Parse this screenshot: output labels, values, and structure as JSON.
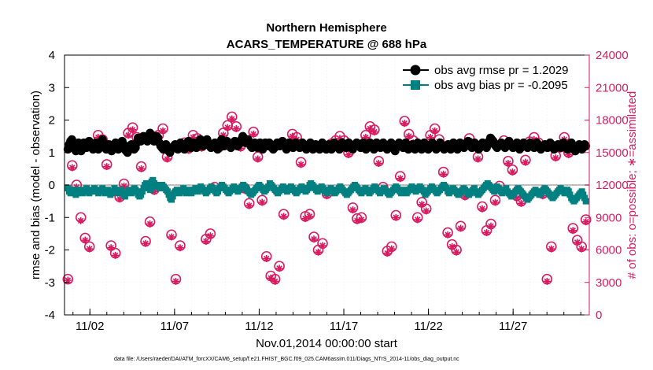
{
  "chart_data": {
    "type": "line",
    "title": "Northern Hemisphere",
    "subtitle": "ACARS_TEMPERATURE @ 688 hPa",
    "xlabel": "Nov.01,2014 00:00:00 start",
    "ylabel": "rmse and bias (model - observation)",
    "y2label": "# of obs: o=possible; ∗=assimilated",
    "ylim": [
      -4,
      4
    ],
    "y2lim": [
      0,
      24000
    ],
    "yticks": [
      "-4",
      "-3",
      "-2",
      "-1",
      "0",
      "1",
      "2",
      "3",
      "4"
    ],
    "y2ticks": [
      "0",
      "3000",
      "6000",
      "9000",
      "12000",
      "15000",
      "18000",
      "21000",
      "24000"
    ],
    "xtick_labels": [
      "11/02",
      "11/07",
      "11/12",
      "11/17",
      "11/22",
      "11/27"
    ],
    "xtick_days": [
      2,
      7,
      12,
      17,
      22,
      27
    ],
    "xlim_days": [
      0.5,
      31.5
    ],
    "legend_position": "top-right",
    "series": [
      {
        "name": "obs avg rmse pr = 1.2029",
        "color": "#000000",
        "axis": "left",
        "values": [
          1.1,
          1.25,
          1.35,
          1.4,
          1.3,
          1.15,
          1.05,
          1.2,
          1.3,
          1.15,
          1.05,
          1.2,
          1.3,
          1.25,
          1.15,
          1.2,
          1.35,
          1.3,
          1.2,
          1.1,
          1.2,
          1.3,
          1.2,
          1.1,
          1.15,
          1.3,
          1.4,
          1.3,
          1.2,
          1.1,
          1.2,
          1.25,
          1.15,
          1.05,
          1.1,
          1.25,
          1.3,
          1.2,
          1.1,
          1.15,
          1.3,
          1.35,
          1.25,
          1.1,
          1.05,
          1.0,
          1.1,
          1.2,
          1.25,
          1.2,
          1.1,
          1.15,
          1.3,
          1.45,
          1.4,
          1.35,
          1.4,
          1.5,
          1.45,
          1.4,
          1.35,
          1.45,
          1.6,
          1.55,
          1.4,
          1.35,
          1.4,
          1.5,
          1.45,
          1.3,
          1.2,
          1.15,
          1.1,
          1.2,
          1.25,
          1.15,
          1.05,
          1.0,
          1.1,
          1.15,
          1.2,
          1.25,
          1.2,
          1.1,
          1.2,
          1.3,
          1.25,
          1.15,
          1.1,
          1.2,
          1.3,
          1.35,
          1.25,
          1.15,
          1.2,
          1.3,
          1.25,
          1.15,
          1.2,
          1.3,
          1.4,
          1.3,
          1.2,
          1.25,
          1.35,
          1.4,
          1.3,
          1.2,
          1.15,
          1.2,
          1.25,
          1.3,
          1.2,
          1.1,
          1.15,
          1.3,
          1.4,
          1.3,
          1.2,
          1.25,
          1.35,
          1.3,
          1.2,
          1.15,
          1.2,
          1.3,
          1.35,
          1.25,
          1.2,
          1.25,
          1.3,
          1.4,
          1.5,
          1.4,
          1.3,
          1.35,
          1.4,
          1.3,
          1.2,
          1.15,
          1.2,
          1.3,
          1.25,
          1.15,
          1.2,
          1.3,
          1.2,
          1.1,
          1.2,
          1.3,
          1.25,
          1.2,
          1.3,
          1.25,
          1.15,
          1.1,
          1.15,
          1.2,
          1.3,
          1.25,
          1.2,
          1.3,
          1.35,
          1.3,
          1.2,
          1.1,
          1.2,
          1.3,
          1.25,
          1.2,
          1.15,
          1.2,
          1.3,
          1.25,
          1.2,
          1.15,
          1.2,
          1.3,
          1.25,
          1.2,
          1.1,
          1.15,
          1.2,
          1.3,
          1.2,
          1.1,
          1.2,
          1.25,
          1.2,
          1.15,
          1.1,
          1.2,
          1.3,
          1.25,
          1.2,
          1.1,
          1.2,
          1.25,
          1.15,
          1.1,
          1.2,
          1.3,
          1.25,
          1.2,
          1.15,
          1.1,
          1.2,
          1.3,
          1.25,
          1.2,
          1.15,
          1.25,
          1.3,
          1.25,
          1.15,
          1.1,
          1.2,
          1.25,
          1.3,
          1.25,
          1.2,
          1.15,
          1.25,
          1.3,
          1.2,
          1.1,
          1.15,
          1.2,
          1.3,
          1.25,
          1.15,
          1.1,
          1.2,
          1.3,
          1.25,
          1.2,
          1.15,
          1.2,
          1.3,
          1.25,
          1.2,
          1.1,
          1.15,
          1.25,
          1.3,
          1.2,
          1.15,
          1.05,
          1.15,
          1.25,
          1.3,
          1.25,
          1.2,
          1.15,
          1.25,
          1.3,
          1.2,
          1.1,
          1.15,
          1.2,
          1.25,
          1.2,
          1.1,
          1.2,
          1.3,
          1.25,
          1.15,
          1.1,
          1.2,
          1.3,
          1.25,
          1.2,
          1.1,
          1.2,
          1.25,
          1.3,
          1.25,
          1.2,
          1.1,
          1.15,
          1.25,
          1.3,
          1.25,
          1.2,
          1.1,
          1.15,
          1.2,
          1.25,
          1.2,
          1.1,
          1.2,
          1.3,
          1.25,
          1.15,
          1.1,
          1.2,
          1.3,
          1.25,
          1.2,
          1.15,
          1.2,
          1.3,
          1.35,
          1.25,
          1.2,
          1.15,
          1.25,
          1.3,
          1.25,
          1.2,
          1.1,
          1.15,
          1.25,
          1.3,
          1.25,
          1.2,
          1.15,
          1.25,
          1.35,
          1.45,
          1.4,
          1.35,
          1.25,
          1.2,
          1.15,
          1.2,
          1.25,
          1.3,
          1.25,
          1.2,
          1.15,
          1.25,
          1.3,
          1.35,
          1.25,
          1.2,
          1.15,
          1.2,
          1.25,
          1.3,
          1.2,
          1.1,
          1.15,
          1.25,
          1.3,
          1.25,
          1.2,
          1.15,
          1.2,
          1.3,
          1.25,
          1.2,
          1.15,
          1.25,
          1.3,
          1.25,
          1.2,
          1.1,
          1.15,
          1.2,
          1.25,
          1.2,
          1.15,
          1.25,
          1.3,
          1.25,
          1.2,
          1.1,
          1.15,
          1.2,
          1.25,
          1.2,
          1.15,
          1.25,
          1.3,
          1.25,
          1.2,
          1.1,
          1.15,
          1.25,
          1.3,
          1.2,
          1.1,
          1.05,
          1.15,
          1.2,
          1.25,
          1.2,
          1.1,
          1.15,
          1.25,
          1.2
        ]
      },
      {
        "name": "obs avg bias pr = -0.2095",
        "color": "#008080",
        "axis": "left",
        "values": [
          -0.1,
          -0.2,
          -0.25,
          -0.2,
          -0.15,
          -0.25,
          -0.3,
          -0.25,
          -0.2,
          -0.15,
          -0.2,
          -0.25,
          -0.2,
          -0.15,
          -0.1,
          -0.2,
          -0.25,
          -0.2,
          -0.15,
          -0.2,
          -0.1,
          -0.15,
          -0.2,
          -0.25,
          -0.2,
          -0.15,
          -0.1,
          -0.2,
          -0.25,
          -0.2,
          -0.15,
          -0.2,
          -0.3,
          -0.25,
          -0.2,
          -0.1,
          -0.15,
          -0.2,
          -0.25,
          -0.2,
          -0.15,
          -0.25,
          -0.3,
          -0.35,
          -0.25,
          -0.2,
          -0.15,
          -0.2,
          -0.25,
          -0.2,
          -0.1,
          -0.15,
          -0.2,
          -0.3,
          -0.35,
          -0.3,
          -0.2,
          -0.1,
          0.0,
          0.05,
          0.0,
          -0.1,
          -0.15,
          0.1,
          0.15,
          0.05,
          -0.05,
          0.0,
          -0.05,
          -0.1,
          -0.05,
          0.0,
          -0.05,
          -0.1,
          -0.15,
          -0.2,
          -0.3,
          -0.4,
          -0.45,
          -0.35,
          -0.25,
          -0.2,
          -0.15,
          -0.2,
          -0.25,
          -0.2,
          -0.15,
          -0.1,
          -0.2,
          -0.25,
          -0.2,
          -0.15,
          -0.2,
          -0.25,
          -0.2,
          -0.15,
          -0.1,
          -0.15,
          -0.2,
          -0.1,
          -0.05,
          -0.1,
          -0.15,
          -0.2,
          -0.25,
          -0.2,
          -0.15,
          -0.1,
          -0.05,
          -0.1,
          -0.15,
          -0.2,
          -0.25,
          -0.2,
          -0.1,
          -0.05,
          0.0,
          -0.05,
          -0.1,
          -0.15,
          -0.2,
          -0.25,
          -0.2,
          -0.15,
          -0.1,
          -0.05,
          -0.1,
          -0.15,
          -0.2,
          -0.15,
          -0.1,
          -0.05,
          0.0,
          -0.05,
          -0.1,
          -0.15,
          -0.2,
          -0.25,
          -0.3,
          -0.25,
          -0.2,
          -0.15,
          -0.1,
          -0.05,
          0.0,
          -0.05,
          -0.1,
          -0.15,
          -0.2,
          -0.15,
          -0.1,
          -0.05,
          0.05,
          0.0,
          -0.05,
          -0.1,
          -0.15,
          -0.2,
          -0.25,
          -0.2,
          -0.15,
          -0.1,
          -0.05,
          -0.1,
          -0.15,
          -0.2,
          -0.15,
          -0.1,
          -0.05,
          -0.1,
          -0.15,
          -0.2,
          -0.25,
          -0.2,
          -0.15,
          -0.1,
          -0.05,
          -0.1,
          -0.15,
          -0.2,
          -0.15,
          -0.1,
          0.0,
          0.05,
          0.0,
          -0.05,
          -0.1,
          -0.15,
          -0.2,
          -0.15,
          -0.1,
          -0.05,
          -0.1,
          -0.15,
          -0.2,
          -0.25,
          -0.2,
          -0.15,
          -0.1,
          -0.15,
          -0.2,
          -0.25,
          -0.2,
          -0.15,
          -0.1,
          -0.05,
          -0.1,
          -0.15,
          -0.2,
          -0.25,
          -0.3,
          -0.25,
          -0.2,
          -0.15,
          -0.1,
          -0.05,
          0.0,
          -0.05,
          -0.1,
          -0.15,
          -0.2,
          -0.25,
          -0.2,
          -0.15,
          -0.1,
          -0.15,
          -0.2,
          -0.25,
          -0.2,
          -0.15,
          -0.1,
          -0.05,
          -0.1,
          -0.15,
          -0.2,
          -0.25,
          -0.2,
          -0.15,
          -0.1,
          -0.15,
          -0.2,
          -0.25,
          -0.3,
          -0.25,
          -0.2,
          -0.15,
          -0.1,
          -0.05,
          -0.1,
          -0.15,
          -0.2,
          -0.25,
          -0.2,
          -0.15,
          -0.2,
          -0.25,
          -0.2,
          -0.15,
          -0.1,
          -0.05,
          -0.1,
          -0.15,
          -0.2,
          -0.15,
          -0.1,
          -0.05,
          -0.1,
          -0.15,
          -0.2,
          -0.3,
          -0.25,
          -0.2,
          -0.15,
          -0.1,
          -0.05,
          -0.1,
          -0.15,
          -0.2,
          -0.25,
          -0.2,
          -0.15,
          -0.1,
          -0.05,
          0.0,
          -0.05,
          -0.1,
          -0.2,
          -0.25,
          -0.2,
          -0.15,
          -0.1,
          -0.15,
          -0.2,
          -0.25,
          -0.3,
          -0.25,
          -0.2,
          -0.15,
          -0.1,
          -0.15,
          -0.2,
          -0.25,
          -0.3,
          -0.25,
          -0.2,
          -0.15,
          -0.1,
          -0.2,
          -0.25,
          -0.3,
          -0.25,
          -0.2,
          -0.15,
          -0.1,
          -0.05,
          0.0,
          0.05,
          0.0,
          -0.05,
          -0.1,
          -0.15,
          -0.2,
          -0.1,
          -0.05,
          -0.1,
          -0.15,
          -0.2,
          -0.25,
          -0.2,
          -0.15,
          -0.1,
          -0.2,
          -0.25,
          -0.3,
          -0.35,
          -0.3,
          -0.25,
          -0.2,
          -0.15,
          -0.1,
          -0.15,
          -0.2,
          -0.25,
          -0.3,
          -0.35,
          -0.4,
          -0.45,
          -0.4,
          -0.35,
          -0.3,
          -0.25,
          -0.2,
          -0.15,
          -0.2,
          -0.25,
          -0.3,
          -0.25,
          -0.2,
          -0.15,
          -0.1,
          -0.15,
          -0.2,
          -0.25,
          -0.3,
          -0.35,
          -0.4,
          -0.35,
          -0.3,
          -0.25,
          -0.2,
          -0.15,
          -0.1,
          -0.15,
          -0.2,
          -0.25,
          -0.2,
          -0.15,
          -0.2,
          -0.3,
          -0.4,
          -0.45,
          -0.5,
          -0.45,
          -0.4,
          -0.35,
          -0.3,
          -0.25,
          -0.2,
          -0.3,
          -0.4,
          -0.5
        ]
      },
      {
        "name": "# of obs possible (o)",
        "color": "#d81b60",
        "axis": "right",
        "marker": "circle",
        "values": [
          3300,
          13800,
          12000,
          9000,
          7100,
          6300,
          15500,
          16600,
          16200,
          13900,
          6400,
          5700,
          10900,
          12100,
          16800,
          17300,
          16400,
          13700,
          6800,
          8600,
          11600,
          16600,
          17200,
          14600,
          7400,
          3300,
          6400,
          15900,
          15400,
          16600,
          16300,
          15600,
          7000,
          7500,
          11800,
          15500,
          16800,
          17500,
          18300,
          17400,
          15600,
          11700,
          10300,
          16900,
          14600,
          10600,
          5400,
          3600,
          3300,
          4500,
          9300,
          15700,
          16700,
          16400,
          14100,
          9100,
          9300,
          7200,
          6000,
          6600,
          11200,
          15800,
          16100,
          16500,
          16100,
          15000,
          9900,
          8900,
          9000,
          16600,
          17400,
          17100,
          14200,
          11800,
          5900,
          6300,
          9200,
          12800,
          17900,
          16700,
          16100,
          9000,
          10400,
          9800,
          16600,
          17200,
          16200,
          13200,
          7600,
          6500,
          6000,
          8200,
          11100,
          16300,
          15800,
          14600,
          10000,
          7800,
          8400,
          10600,
          11900,
          16100,
          14200,
          13400,
          11000,
          10500,
          14300,
          16000,
          16400,
          15900,
          11200,
          3300,
          6300,
          14700,
          15500,
          16400,
          15000,
          8000,
          6900,
          6300,
          8800
        ]
      },
      {
        "name": "# of obs assimilated (∗)",
        "color": "#d81b60",
        "axis": "right",
        "marker": "asterisk",
        "values": [
          3200,
          13600,
          11800,
          8700,
          6900,
          6100,
          15300,
          16400,
          16000,
          13700,
          6200,
          5500,
          10700,
          11900,
          16600,
          17100,
          16200,
          13500,
          6600,
          8400,
          11400,
          16400,
          17000,
          14400,
          7200,
          3100,
          6200,
          15700,
          15200,
          16400,
          16100,
          15400,
          6800,
          7300,
          11600,
          15300,
          16600,
          17300,
          18100,
          17200,
          15400,
          11500,
          10100,
          16700,
          14400,
          10400,
          5200,
          3400,
          3100,
          4300,
          9100,
          15500,
          16500,
          16200,
          13900,
          8900,
          9100,
          7000,
          5800,
          6400,
          11000,
          15600,
          15900,
          16300,
          15900,
          14800,
          9700,
          8700,
          8800,
          16400,
          17200,
          16900,
          14000,
          11600,
          5700,
          6100,
          9000,
          12600,
          17700,
          16500,
          15900,
          8800,
          10200,
          9600,
          16400,
          17000,
          16000,
          13000,
          7400,
          6300,
          5800,
          8000,
          10900,
          16100,
          15600,
          14400,
          9800,
          7600,
          8200,
          10400,
          11700,
          15900,
          14000,
          13200,
          10800,
          10300,
          14100,
          15800,
          16200,
          15700,
          11000,
          3100,
          6100,
          14500,
          15300,
          16200,
          14800,
          7800,
          6700,
          6100,
          8600
        ]
      }
    ]
  },
  "footer": {
    "data_file": "data file: /Users/raeder/DAI/ATM_forcXX/CAM6_setup/f.e21.FHIST_BGC.f09_025.CAM6assim.011/Diags_NTrS_2014-11/obs_diag_output.nc"
  },
  "colors": {
    "rmse": "#000000",
    "bias": "#008080",
    "obs": "#d81b60",
    "zero_line": "#bdbdbd"
  }
}
